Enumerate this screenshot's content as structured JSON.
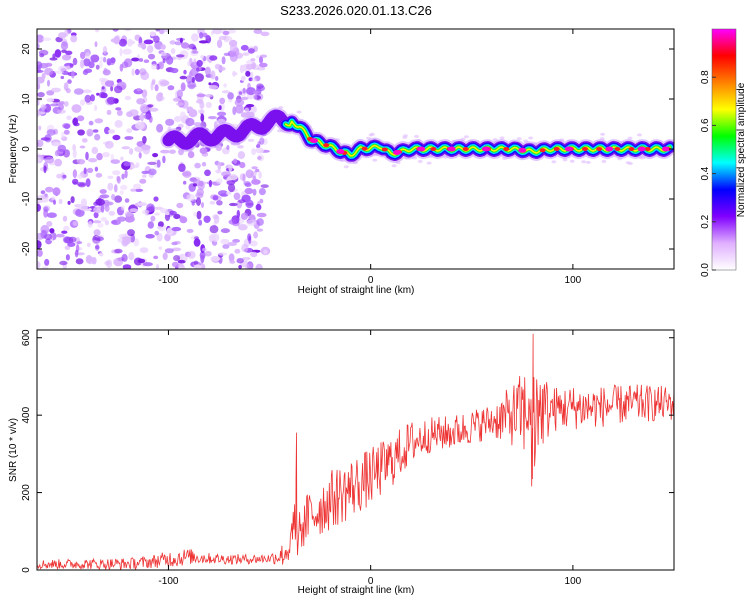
{
  "chart_data": [
    {
      "type": "heatmap",
      "title": "S233.2026.020.01.13.C26",
      "xlabel": "Height of straight line (km)",
      "ylabel": "Frequency (Hz)",
      "xlim": [
        -165,
        150
      ],
      "ylim": [
        -24,
        24
      ],
      "xticks": [
        -100,
        0,
        100
      ],
      "xtick_labels": [
        "-100",
        "0",
        "100"
      ],
      "yticks": [
        -20,
        -10,
        0,
        10,
        20
      ],
      "ytick_labels": [
        "-20",
        "-10",
        "0",
        "10",
        "20"
      ],
      "ridge": {
        "x": [
          -100,
          -90,
          -80,
          -70,
          -60,
          -50,
          -45,
          -40,
          -35,
          -30,
          -25,
          -20,
          -15,
          -10,
          -5,
          0,
          5,
          10,
          20,
          30,
          40,
          50,
          60,
          70,
          80,
          90,
          100,
          110,
          120,
          130,
          140,
          148
        ],
        "y": [
          1.5,
          2,
          2.5,
          3,
          4,
          5.5,
          6,
          5.5,
          4.5,
          2,
          1.2,
          0.5,
          -0.5,
          -1.2,
          0,
          0.2,
          0.5,
          -1,
          0,
          0,
          0,
          0,
          0,
          0,
          -0.5,
          0,
          0,
          0,
          0,
          0,
          0,
          0
        ],
        "peak_x": [
          -28,
          -15,
          13,
          25,
          40,
          57,
          75,
          98,
          118,
          134,
          146
        ]
      },
      "colorbar": {
        "label": "Normalized spectral amplitude",
        "range": [
          0,
          1
        ],
        "ticks": [
          0.0,
          0.2,
          0.4,
          0.6,
          0.8
        ],
        "tick_labels": [
          "0.0",
          "0.2",
          "0.4",
          "0.6",
          "0.8"
        ],
        "colors": [
          "#ffffff",
          "#e0b0ff",
          "#8000ff",
          "#0000ff",
          "#00ffff",
          "#00ff00",
          "#ffff00",
          "#ff8000",
          "#ff0000",
          "#ff00ff"
        ]
      }
    },
    {
      "type": "line",
      "xlabel": "Height of straight line (km)",
      "ylabel": "SNR (10 * v/v)",
      "xlim": [
        -165,
        150
      ],
      "ylim": [
        0,
        620
      ],
      "xticks": [
        -100,
        0,
        100
      ],
      "xtick_labels": [
        "-100",
        "0",
        "100"
      ],
      "yticks": [
        0,
        200,
        400,
        600
      ],
      "ytick_labels": [
        "0",
        "200",
        "400",
        "600"
      ],
      "color": "#ee3333",
      "trend": {
        "x": [
          -165,
          -120,
          -110,
          -100,
          -90,
          -80,
          -70,
          -60,
          -50,
          -43,
          -40,
          -35,
          -30,
          -20,
          -10,
          0,
          10,
          20,
          30,
          40,
          50,
          60,
          70,
          80,
          90,
          100,
          110,
          120,
          130,
          140,
          150
        ],
        "y": [
          15,
          16,
          20,
          28,
          35,
          30,
          28,
          28,
          30,
          40,
          60,
          100,
          140,
          180,
          210,
          240,
          280,
          330,
          350,
          355,
          370,
          385,
          400,
          410,
          415,
          420,
          420,
          425,
          430,
          430,
          430
        ]
      },
      "spread": {
        "x": [
          -165,
          -110,
          -95,
          -80,
          -50,
          -42,
          -30,
          -10,
          10,
          30,
          60,
          70,
          80,
          90,
          150
        ],
        "y": [
          12,
          16,
          24,
          14,
          12,
          35,
          75,
          80,
          70,
          45,
          45,
          80,
          140,
          60,
          45
        ]
      },
      "features": [
        {
          "x": 80,
          "peak": 610,
          "trough": 235
        },
        {
          "x": -37,
          "peak": 355,
          "trough": 100
        }
      ]
    }
  ]
}
